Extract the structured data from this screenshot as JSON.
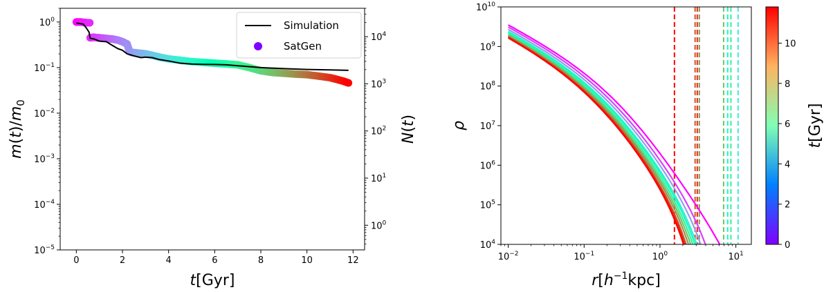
{
  "chart_data": [
    {
      "type": "scatter",
      "panel": "left",
      "xlabel": "t[Gyr]",
      "ylabel": "m(t)/m0",
      "ylabel_right": "N(t)",
      "xlim": [
        -0.7,
        12.5
      ],
      "yscale": "log",
      "ylim": [
        1e-05,
        2
      ],
      "y2lim": [
        0.3,
        40000
      ],
      "x_ticks": [
        "0",
        "2",
        "4",
        "6",
        "8",
        "10",
        "12"
      ],
      "y_ticks": [
        {
          "value": 1,
          "base": "10",
          "exp": "0"
        },
        {
          "value": 0.1,
          "base": "10",
          "exp": "−1"
        },
        {
          "value": 0.01,
          "base": "10",
          "exp": "−2"
        },
        {
          "value": 0.001,
          "base": "10",
          "exp": "−3"
        },
        {
          "value": 0.0001,
          "base": "10",
          "exp": "−4"
        },
        {
          "value": 1e-05,
          "base": "10",
          "exp": "−5"
        }
      ],
      "y2_ticks": [
        {
          "value": 1,
          "base": "10",
          "exp": "0"
        },
        {
          "value": 10,
          "base": "10",
          "exp": "1"
        },
        {
          "value": 100,
          "base": "10",
          "exp": "2"
        },
        {
          "value": 1000,
          "base": "10",
          "exp": "3"
        },
        {
          "value": 10000,
          "base": "10",
          "exp": "4"
        }
      ],
      "legend_position": "top-right",
      "series": [
        {
          "name": "Simulation",
          "kind": "line",
          "color": "#000000",
          "x": [
            0.0,
            0.3,
            0.45,
            0.55,
            0.6,
            0.8,
            1.0,
            1.3,
            1.5,
            1.8,
            2.0,
            2.2,
            2.5,
            2.8,
            3.0,
            3.3,
            3.6,
            4.0,
            4.5,
            5.0,
            5.5,
            6.0,
            6.5,
            7.0,
            8.0,
            9.0,
            10.0,
            11.0,
            11.8
          ],
          "y": [
            0.95,
            0.9,
            0.72,
            0.6,
            0.44,
            0.42,
            0.38,
            0.37,
            0.32,
            0.26,
            0.24,
            0.2,
            0.18,
            0.165,
            0.17,
            0.165,
            0.15,
            0.14,
            0.125,
            0.12,
            0.118,
            0.117,
            0.115,
            0.11,
            0.1,
            0.095,
            0.091,
            0.089,
            0.087
          ]
        },
        {
          "name": "SatGen",
          "kind": "scatter",
          "colormap": "rainbow",
          "x": [
            0.0,
            0.1,
            0.2,
            0.3,
            0.4,
            0.5,
            0.6,
            0.7,
            0.8,
            0.9,
            1.0,
            1.2,
            1.4,
            1.6,
            1.8,
            2.0,
            2.2,
            2.3,
            2.4,
            2.6,
            2.8,
            3.0,
            3.3,
            3.6,
            4.0,
            4.5,
            5.0,
            5.5,
            6.0,
            6.5,
            7.0,
            7.5,
            8.0,
            8.5,
            9.0,
            9.5,
            10.0,
            10.5,
            11.0,
            11.3,
            11.6,
            11.8
          ],
          "y": [
            1.0,
            1.0,
            1.0,
            0.98,
            0.97,
            0.96,
            0.45,
            0.46,
            0.46,
            0.45,
            0.45,
            0.44,
            0.43,
            0.42,
            0.4,
            0.37,
            0.33,
            0.23,
            0.215,
            0.21,
            0.205,
            0.2,
            0.185,
            0.17,
            0.155,
            0.145,
            0.135,
            0.13,
            0.125,
            0.12,
            0.115,
            0.1,
            0.085,
            0.078,
            0.075,
            0.072,
            0.07,
            0.065,
            0.06,
            0.055,
            0.05,
            0.046
          ]
        }
      ]
    },
    {
      "type": "line",
      "panel": "right",
      "xlabel": "r[h^-1kpc]",
      "ylabel": "ρ",
      "xscale": "log",
      "yscale": "log",
      "xlim": [
        0.008,
        16
      ],
      "ylim": [
        10000,
        10000000000
      ],
      "x_ticks": [
        {
          "value": 0.01,
          "base": "10",
          "exp": "−2"
        },
        {
          "value": 0.1,
          "base": "10",
          "exp": "−1"
        },
        {
          "value": 1,
          "base": "10",
          "exp": "0"
        },
        {
          "value": 10,
          "base": "10",
          "exp": "1"
        }
      ],
      "y_ticks": [
        {
          "value": 10000,
          "base": "10",
          "exp": "4"
        },
        {
          "value": 100000,
          "base": "10",
          "exp": "5"
        },
        {
          "value": 1000000,
          "base": "10",
          "exp": "6"
        },
        {
          "value": 10000000,
          "base": "10",
          "exp": "7"
        },
        {
          "value": 100000000,
          "base": "10",
          "exp": "8"
        },
        {
          "value": 1000000000,
          "base": "10",
          "exp": "9"
        },
        {
          "value": 10000000000,
          "base": "10",
          "exp": "10"
        }
      ],
      "colorbar": {
        "label": "t[Gyr]",
        "colormap": "rainbow",
        "range": [
          0,
          11.8
        ],
        "ticks": [
          "0",
          "2",
          "4",
          "6",
          "8",
          "10"
        ]
      },
      "series": [
        {
          "t": 0.0,
          "rho_at_0.01": 3500000000.0,
          "rs": 0.3,
          "rt": 14,
          "dashed": false
        },
        {
          "t": 1.0,
          "rho_at_0.01": 3100000000.0,
          "rs": 0.26,
          "rt": 4.5,
          "dashed": false
        },
        {
          "t": 2.5,
          "rho_at_0.01": 2700000000.0,
          "rs": 0.24,
          "rt": 3.7,
          "dashed": false
        },
        {
          "t": 4.5,
          "rho_at_0.01": 2400000000.0,
          "rs": 0.22,
          "rt": 3.2,
          "dashed": true,
          "r_line": 10.7
        },
        {
          "t": 5.5,
          "rho_at_0.01": 2300000000.0,
          "rs": 0.21,
          "rt": 3.0,
          "dashed": true,
          "r_line": 7.8
        },
        {
          "t": 7.0,
          "rho_at_0.01": 2100000000.0,
          "rs": 0.2,
          "rt": 2.8,
          "dashed": true,
          "r_line": 8.6
        },
        {
          "t": 8.5,
          "rho_at_0.01": 1950000000.0,
          "rs": 0.19,
          "rt": 2.6,
          "dashed": true,
          "r_line": 6.9
        },
        {
          "t": 9.5,
          "rho_at_0.01": 1850000000.0,
          "rs": 0.18,
          "rt": 2.4,
          "dashed": true,
          "r_line": 3.3
        },
        {
          "t": 10.5,
          "rho_at_0.01": 1750000000.0,
          "rs": 0.17,
          "rt": 2.2,
          "dashed": true,
          "r_line": 2.9
        },
        {
          "t": 11.2,
          "rho_at_0.01": 1700000000.0,
          "rs": 0.165,
          "rt": 2.1,
          "dashed": true,
          "r_line": 3.1
        },
        {
          "t": 11.8,
          "rho_at_0.01": 1650000000.0,
          "rs": 0.16,
          "rt": 2.0,
          "dashed": true,
          "r_line": 1.55
        }
      ]
    }
  ]
}
